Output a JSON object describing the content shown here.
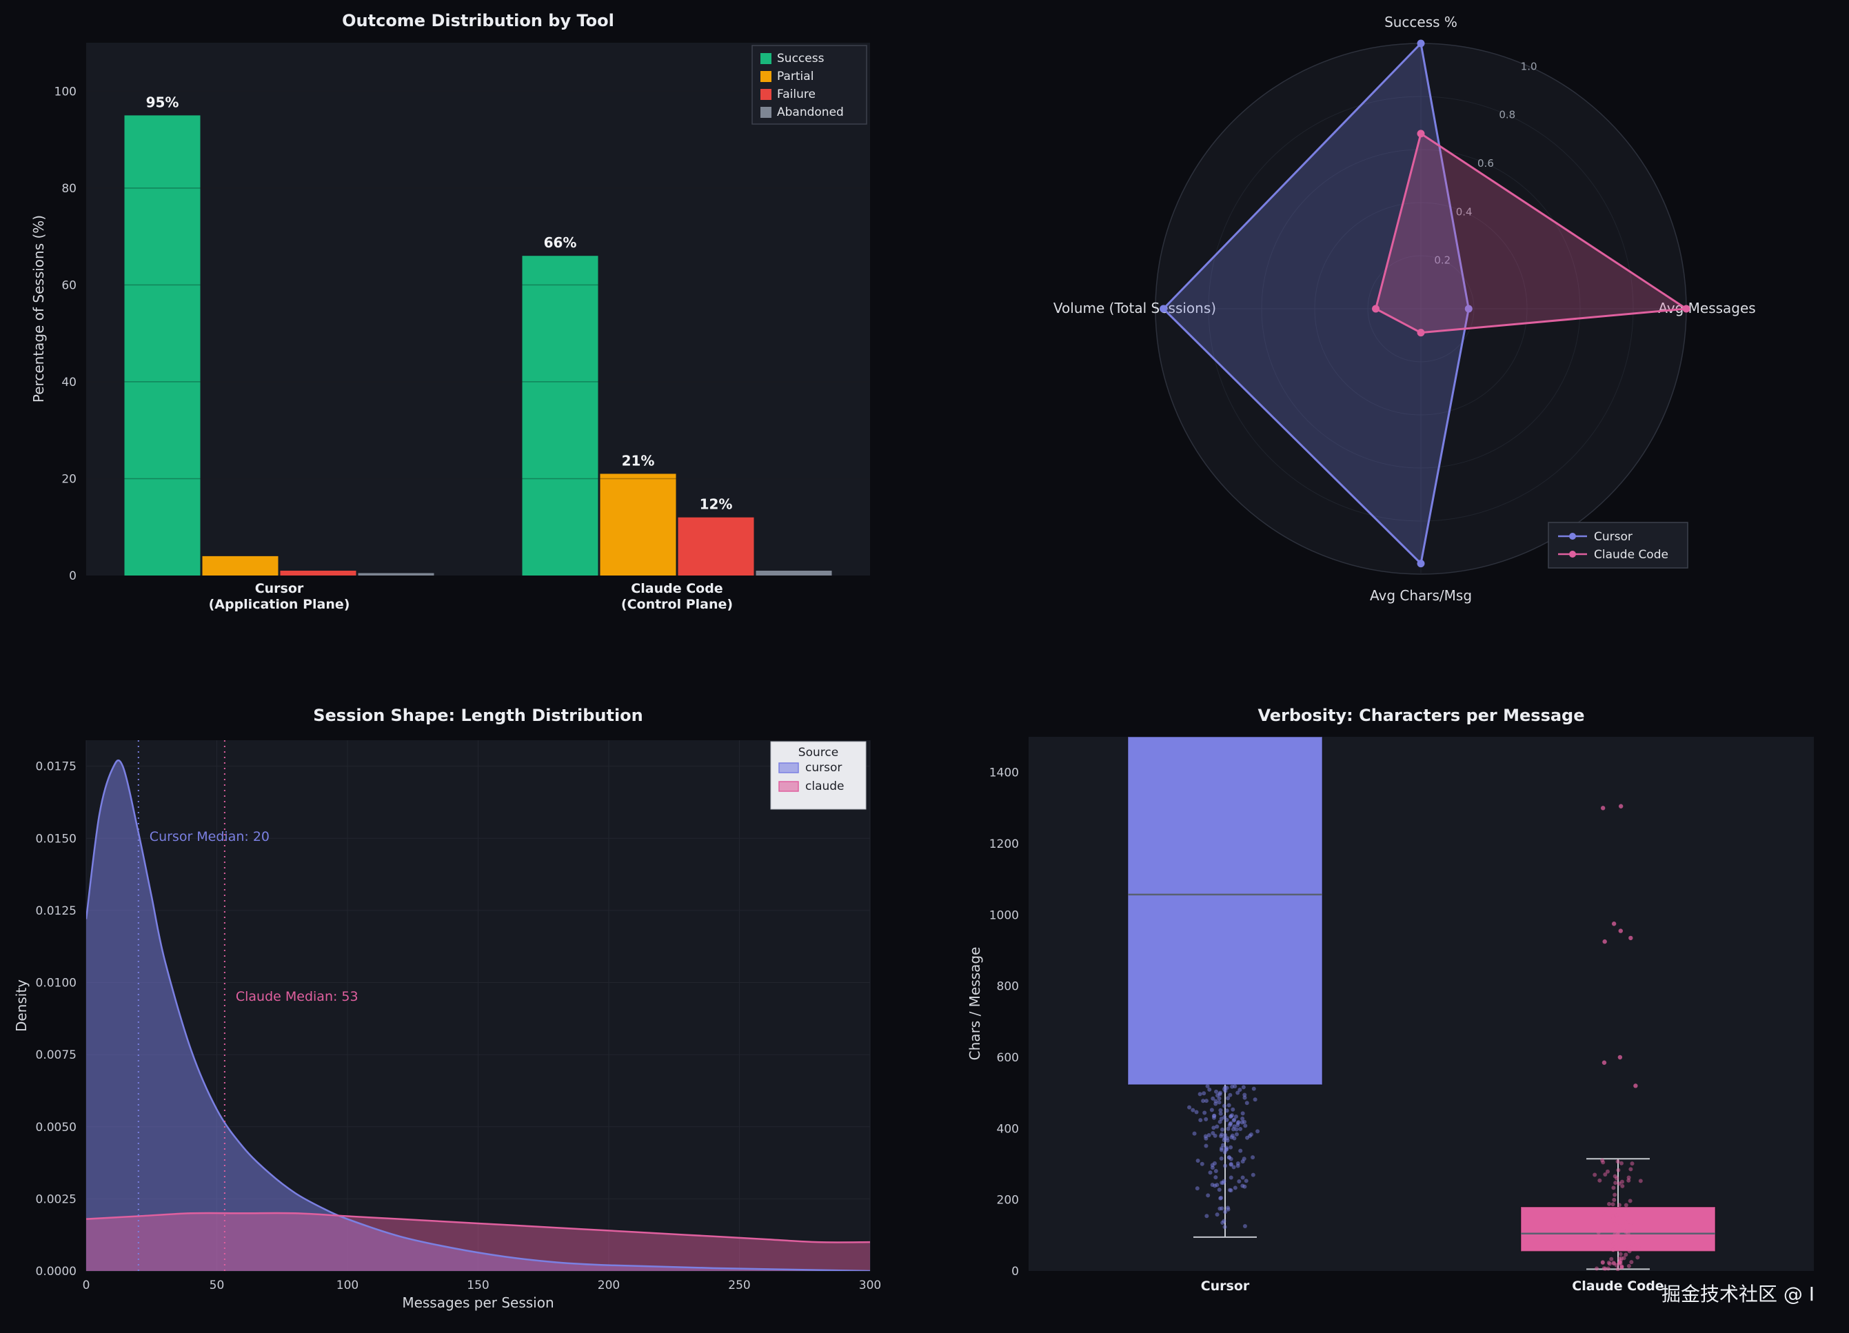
{
  "watermark": "掘金技术社区 @ I",
  "colors": {
    "background": "#0b0c11",
    "panel": "#171a22",
    "grid": "#22252e",
    "text": "#eceef2",
    "tick": "#c7cad3",
    "success": "#19b77c",
    "partial": "#f2a104",
    "failure": "#e8453f",
    "abandoned": "#7e8694",
    "cursor": "#7b80e2",
    "claude": "#e0609f"
  },
  "chart_data": [
    {
      "id": "outcome_bar",
      "type": "bar",
      "title": "Outcome Distribution by Tool",
      "ylabel": "Percentage of Sessions (%)",
      "ylim": [
        0,
        110
      ],
      "yticks": [
        0,
        20,
        40,
        60,
        80,
        100
      ],
      "categories": [
        [
          "Cursor",
          "(Application Plane)"
        ],
        [
          "Claude Code",
          "(Control Plane)"
        ]
      ],
      "legend_position": "upper right",
      "grid": true,
      "series": [
        {
          "name": "Success",
          "color_key": "success",
          "values": [
            95,
            66
          ],
          "labels": [
            "95%",
            "66%"
          ]
        },
        {
          "name": "Partial",
          "color_key": "partial",
          "values": [
            4,
            21
          ],
          "labels": [
            "",
            "21%"
          ]
        },
        {
          "name": "Failure",
          "color_key": "failure",
          "values": [
            1,
            12
          ],
          "labels": [
            "",
            "12%"
          ]
        },
        {
          "name": "Abandoned",
          "color_key": "abandoned",
          "values": [
            0.5,
            1
          ],
          "labels": [
            "",
            ""
          ]
        }
      ]
    },
    {
      "id": "tool_radar",
      "type": "radar",
      "axes": [
        "Success %",
        "Avg Messages",
        "Avg Chars/Msg",
        "Volume (Total Sessions)"
      ],
      "rticks": [
        0.2,
        0.4,
        0.6,
        0.8,
        1.0
      ],
      "rlim": [
        0,
        1.0
      ],
      "legend_position": "lower right",
      "series": [
        {
          "name": "Cursor",
          "color_key": "cursor",
          "values": [
            1.0,
            0.18,
            0.96,
            0.97
          ]
        },
        {
          "name": "Claude Code",
          "color_key": "claude",
          "values": [
            0.66,
            1.0,
            0.09,
            0.17
          ]
        }
      ]
    },
    {
      "id": "session_length_density",
      "type": "area",
      "title": "Session Shape: Length Distribution",
      "xlabel": "Messages per Session",
      "ylabel": "Density",
      "xlim": [
        0,
        300
      ],
      "ylim": [
        0,
        0.0184
      ],
      "xticks": [
        0,
        50,
        100,
        150,
        200,
        250,
        300
      ],
      "yticks": [
        "0.0000",
        "0.0025",
        "0.0050",
        "0.0075",
        "0.0100",
        "0.0125",
        "0.0150",
        "0.0175"
      ],
      "legend_title": "Source",
      "grid": true,
      "series": [
        {
          "name": "cursor",
          "color_key": "cursor",
          "points": [
            [
              0,
              0.0122
            ],
            [
              5,
              0.0158
            ],
            [
              10,
              0.0174
            ],
            [
              14,
              0.0175
            ],
            [
              20,
              0.0152
            ],
            [
              25,
              0.013
            ],
            [
              30,
              0.0108
            ],
            [
              40,
              0.0077
            ],
            [
              50,
              0.0056
            ],
            [
              60,
              0.0043
            ],
            [
              70,
              0.0034
            ],
            [
              80,
              0.0027
            ],
            [
              90,
              0.0022
            ],
            [
              100,
              0.0018
            ],
            [
              120,
              0.0012
            ],
            [
              140,
              0.0008
            ],
            [
              160,
              0.0005
            ],
            [
              180,
              0.0003
            ],
            [
              200,
              0.0002
            ],
            [
              240,
              0.0001
            ],
            [
              300,
              0.0
            ]
          ]
        },
        {
          "name": "claude",
          "color_key": "claude",
          "points": [
            [
              0,
              0.0018
            ],
            [
              20,
              0.0019
            ],
            [
              40,
              0.002
            ],
            [
              60,
              0.002
            ],
            [
              80,
              0.002
            ],
            [
              100,
              0.0019
            ],
            [
              120,
              0.0018
            ],
            [
              140,
              0.0017
            ],
            [
              160,
              0.0016
            ],
            [
              180,
              0.0015
            ],
            [
              200,
              0.0014
            ],
            [
              220,
              0.0013
            ],
            [
              240,
              0.0012
            ],
            [
              260,
              0.0011
            ],
            [
              280,
              0.001
            ],
            [
              300,
              0.001
            ]
          ]
        }
      ],
      "medians": [
        {
          "label": "Cursor Median: 20",
          "value": 20,
          "color_key": "cursor"
        },
        {
          "label": "Claude Median: 53",
          "value": 53,
          "color_key": "claude"
        }
      ]
    },
    {
      "id": "verbosity_box",
      "type": "box",
      "title": "Verbosity: Characters per Message",
      "ylabel": "Chars / Message",
      "ylim": [
        0,
        1500
      ],
      "yticks": [
        0,
        200,
        400,
        600,
        800,
        1000,
        1200,
        1400
      ],
      "categories": [
        "Cursor",
        "Claude Code"
      ],
      "boxes": [
        {
          "name": "Cursor",
          "color_key": "cursor",
          "q1": 523,
          "median": 1057,
          "q3": 1500,
          "whisker_low": 95,
          "whisker_high": null,
          "strip_range": [
            100,
            520
          ],
          "strip_count": 160,
          "outliers": []
        },
        {
          "name": "Claude Code",
          "color_key": "claude",
          "q1": 55,
          "median": 105,
          "q3": 180,
          "whisker_low": 5,
          "whisker_high": 315,
          "strip_range": [
            5,
            320
          ],
          "strip_count": 85,
          "outliers": [
            1305,
            1300,
            975,
            955,
            935,
            925,
            600,
            585,
            520
          ]
        }
      ]
    }
  ]
}
